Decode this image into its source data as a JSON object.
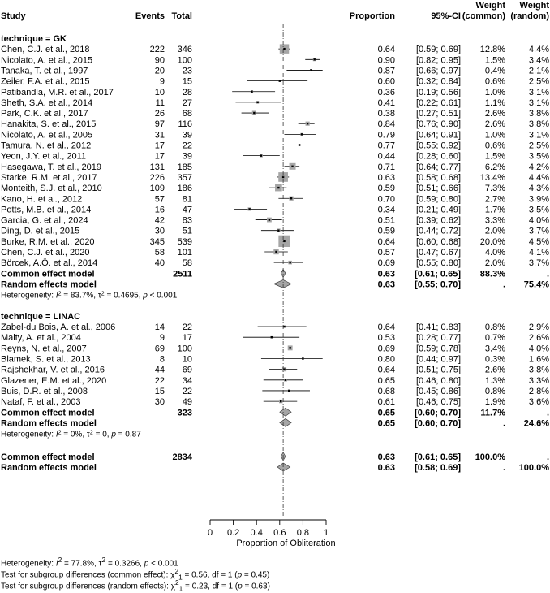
{
  "chart_data": {
    "type": "forest",
    "headers": {
      "study": "Study",
      "events": "Events",
      "total": "Total",
      "proportion": "Proportion",
      "ci": "95%-CI",
      "weight_common": [
        "Weight",
        "(common)"
      ],
      "weight_random": [
        "Weight",
        "(random)"
      ]
    },
    "xaxis": {
      "label": "Proportion of Obliteration",
      "ticks": [
        "0",
        "0.2",
        "0.4",
        "0.6",
        "0.8",
        "1"
      ],
      "range": [
        0,
        1
      ],
      "reference_line": 0.63
    },
    "groups": [
      {
        "title": "technique = GK",
        "studies": [
          {
            "study": "Chen, C.J. et al., 2018",
            "events": "222",
            "total": "346",
            "prop": 0.64,
            "lo": 0.59,
            "hi": 0.69,
            "ci": "[0.59; 0.69]",
            "wc": "12.8%",
            "wr": "4.4%",
            "wcn": 12.8
          },
          {
            "study": "Nicolato, A. et al., 2015",
            "events": "90",
            "total": "100",
            "prop": 0.9,
            "lo": 0.82,
            "hi": 0.95,
            "ci": "[0.82; 0.95]",
            "wc": "1.5%",
            "wr": "3.4%",
            "wcn": 1.5
          },
          {
            "study": "Tanaka, T. et al., 1997",
            "events": "20",
            "total": "23",
            "prop": 0.87,
            "lo": 0.66,
            "hi": 0.97,
            "ci": "[0.66; 0.97]",
            "wc": "0.4%",
            "wr": "2.1%",
            "wcn": 0.4
          },
          {
            "study": "Zeiler, F.A. et al., 2015",
            "events": "9",
            "total": "15",
            "prop": 0.6,
            "lo": 0.32,
            "hi": 0.84,
            "ci": "[0.32; 0.84]",
            "wc": "0.6%",
            "wr": "2.5%",
            "wcn": 0.6
          },
          {
            "study": "Patibandla, M.R. et al., 2017",
            "events": "10",
            "total": "28",
            "prop": 0.36,
            "lo": 0.19,
            "hi": 0.56,
            "ci": "[0.19; 0.56]",
            "wc": "1.0%",
            "wr": "3.1%",
            "wcn": 1.0
          },
          {
            "study": "Sheth, S.A. et al., 2014",
            "events": "11",
            "total": "27",
            "prop": 0.41,
            "lo": 0.22,
            "hi": 0.61,
            "ci": "[0.22; 0.61]",
            "wc": "1.1%",
            "wr": "3.1%",
            "wcn": 1.1
          },
          {
            "study": "Park, C.K. et al., 2017",
            "events": "26",
            "total": "68",
            "prop": 0.38,
            "lo": 0.27,
            "hi": 0.51,
            "ci": "[0.27; 0.51]",
            "wc": "2.6%",
            "wr": "3.8%",
            "wcn": 2.6
          },
          {
            "study": "Hanakita, S. et al., 2015",
            "events": "97",
            "total": "116",
            "prop": 0.84,
            "lo": 0.76,
            "hi": 0.9,
            "ci": "[0.76; 0.90]",
            "wc": "2.6%",
            "wr": "3.8%",
            "wcn": 2.6
          },
          {
            "study": "Nicolato, A. et al., 2005",
            "events": "31",
            "total": "39",
            "prop": 0.79,
            "lo": 0.64,
            "hi": 0.91,
            "ci": "[0.64; 0.91]",
            "wc": "1.0%",
            "wr": "3.1%",
            "wcn": 1.0
          },
          {
            "study": "Tamura, N. et al., 2012",
            "events": "17",
            "total": "22",
            "prop": 0.77,
            "lo": 0.55,
            "hi": 0.92,
            "ci": "[0.55; 0.92]",
            "wc": "0.6%",
            "wr": "2.5%",
            "wcn": 0.6
          },
          {
            "study": "Yeon, J.Y. et al., 2011",
            "events": "17",
            "total": "39",
            "prop": 0.44,
            "lo": 0.28,
            "hi": 0.6,
            "ci": "[0.28; 0.60]",
            "wc": "1.5%",
            "wr": "3.5%",
            "wcn": 1.5
          },
          {
            "study": "Hasegawa, T. et al., 2019",
            "events": "131",
            "total": "185",
            "prop": 0.71,
            "lo": 0.64,
            "hi": 0.77,
            "ci": "[0.64; 0.77]",
            "wc": "6.2%",
            "wr": "4.2%",
            "wcn": 6.2
          },
          {
            "study": "Starke, R.M. et al., 2017",
            "events": "226",
            "total": "357",
            "prop": 0.63,
            "lo": 0.58,
            "hi": 0.68,
            "ci": "[0.58; 0.68]",
            "wc": "13.4%",
            "wr": "4.4%",
            "wcn": 13.4
          },
          {
            "study": "Monteith, S.J. et al., 2010",
            "events": "109",
            "total": "186",
            "prop": 0.59,
            "lo": 0.51,
            "hi": 0.66,
            "ci": "[0.51; 0.66]",
            "wc": "7.3%",
            "wr": "4.3%",
            "wcn": 7.3
          },
          {
            "study": "Kano, H. et al., 2012",
            "events": "57",
            "total": "81",
            "prop": 0.7,
            "lo": 0.59,
            "hi": 0.8,
            "ci": "[0.59; 0.80]",
            "wc": "2.7%",
            "wr": "3.9%",
            "wcn": 2.7
          },
          {
            "study": "Potts, M.B. et al., 2014",
            "events": "16",
            "total": "47",
            "prop": 0.34,
            "lo": 0.21,
            "hi": 0.49,
            "ci": "[0.21; 0.49]",
            "wc": "1.7%",
            "wr": "3.5%",
            "wcn": 1.7
          },
          {
            "study": "Garcia, G. et al., 2024",
            "events": "42",
            "total": "83",
            "prop": 0.51,
            "lo": 0.39,
            "hi": 0.62,
            "ci": "[0.39; 0.62]",
            "wc": "3.3%",
            "wr": "4.0%",
            "wcn": 3.3
          },
          {
            "study": "Ding, D. et al., 2015",
            "events": "30",
            "total": "51",
            "prop": 0.59,
            "lo": 0.44,
            "hi": 0.72,
            "ci": "[0.44; 0.72]",
            "wc": "2.0%",
            "wr": "3.7%",
            "wcn": 2.0
          },
          {
            "study": "Burke, R.M. et al., 2020",
            "events": "345",
            "total": "539",
            "prop": 0.64,
            "lo": 0.6,
            "hi": 0.68,
            "ci": "[0.60; 0.68]",
            "wc": "20.0%",
            "wr": "4.5%",
            "wcn": 20.0
          },
          {
            "study": "Chen, C.J. et al., 2020",
            "events": "58",
            "total": "101",
            "prop": 0.57,
            "lo": 0.47,
            "hi": 0.67,
            "ci": "[0.47; 0.67]",
            "wc": "4.0%",
            "wr": "4.1%",
            "wcn": 4.0
          },
          {
            "study": "Börcek, A.Ö. et al., 2014",
            "events": "40",
            "total": "58",
            "prop": 0.69,
            "lo": 0.55,
            "hi": 0.8,
            "ci": "[0.55; 0.80]",
            "wc": "2.0%",
            "wr": "3.7%",
            "wcn": 2.0
          }
        ],
        "common": {
          "label": "Common effect model",
          "total": "2511",
          "prop": 0.63,
          "lo": 0.61,
          "hi": 0.65,
          "est": "0.63",
          "ci": "[0.61; 0.65]",
          "wc": "88.3%",
          "wr": "."
        },
        "random": {
          "label": "Random effects model",
          "prop": 0.63,
          "lo": 0.55,
          "hi": 0.7,
          "est": "0.63",
          "ci": "[0.55; 0.70]",
          "wc": ".",
          "wr": "75.4%"
        },
        "heterogeneity": {
          "prefix": "Heterogeneity: ",
          "i2": "83.7%",
          "tau2": "0.4695",
          "p": "< 0.001"
        }
      },
      {
        "title": "technique = LINAC",
        "studies": [
          {
            "study": "Zabel-du Bois, A. et al., 2006",
            "events": "14",
            "total": "22",
            "prop": 0.64,
            "lo": 0.41,
            "hi": 0.83,
            "ci": "[0.41; 0.83]",
            "wc": "0.8%",
            "wr": "2.9%",
            "wcn": 0.8
          },
          {
            "study": "Maity, A. et al., 2004",
            "events": "9",
            "total": "17",
            "prop": 0.53,
            "lo": 0.28,
            "hi": 0.77,
            "ci": "[0.28; 0.77]",
            "wc": "0.7%",
            "wr": "2.6%",
            "wcn": 0.7
          },
          {
            "study": "Reyns, N. et al., 2007",
            "events": "69",
            "total": "100",
            "prop": 0.69,
            "lo": 0.59,
            "hi": 0.78,
            "ci": "[0.59; 0.78]",
            "wc": "3.4%",
            "wr": "4.0%",
            "wcn": 3.4
          },
          {
            "study": "Blamek, S. et al., 2013",
            "events": "8",
            "total": "10",
            "prop": 0.8,
            "lo": 0.44,
            "hi": 0.97,
            "ci": "[0.44; 0.97]",
            "wc": "0.3%",
            "wr": "1.6%",
            "wcn": 0.3
          },
          {
            "study": "Rajshekhar, V. et al., 2016",
            "events": "44",
            "total": "69",
            "prop": 0.64,
            "lo": 0.51,
            "hi": 0.75,
            "ci": "[0.51; 0.75]",
            "wc": "2.6%",
            "wr": "3.8%",
            "wcn": 2.6
          },
          {
            "study": "Glazener, E.M. et al., 2020",
            "events": "22",
            "total": "34",
            "prop": 0.65,
            "lo": 0.46,
            "hi": 0.8,
            "ci": "[0.46; 0.80]",
            "wc": "1.3%",
            "wr": "3.3%",
            "wcn": 1.3
          },
          {
            "study": "Buis, D.R. et al., 2008",
            "events": "15",
            "total": "22",
            "prop": 0.68,
            "lo": 0.45,
            "hi": 0.86,
            "ci": "[0.45; 0.86]",
            "wc": "0.8%",
            "wr": "2.8%",
            "wcn": 0.8
          },
          {
            "study": "Nataf, F. et al., 2003",
            "events": "30",
            "total": "49",
            "prop": 0.61,
            "lo": 0.46,
            "hi": 0.75,
            "ci": "[0.46; 0.75]",
            "wc": "1.9%",
            "wr": "3.6%",
            "wcn": 1.9
          }
        ],
        "common": {
          "label": "Common effect model",
          "total": "323",
          "prop": 0.65,
          "lo": 0.6,
          "hi": 0.7,
          "est": "0.65",
          "ci": "[0.60; 0.70]",
          "wc": "11.7%",
          "wr": "."
        },
        "random": {
          "label": "Random effects model",
          "prop": 0.65,
          "lo": 0.6,
          "hi": 0.7,
          "est": "0.65",
          "ci": "[0.60; 0.70]",
          "wc": ".",
          "wr": "24.6%"
        },
        "heterogeneity": {
          "prefix": "Heterogeneity: ",
          "i2": "0%",
          "tau2": "0",
          "p": "0.87"
        }
      }
    ],
    "overall": {
      "common": {
        "label": "Common effect model",
        "total": "2834",
        "prop": 0.63,
        "lo": 0.61,
        "hi": 0.65,
        "est": "0.63",
        "ci": "[0.61; 0.65]",
        "wc": "100.0%",
        "wr": "."
      },
      "random": {
        "label": "Random effects model",
        "prop": 0.63,
        "lo": 0.58,
        "hi": 0.69,
        "est": "0.63",
        "ci": "[0.58; 0.69]",
        "wc": ".",
        "wr": "100.0%"
      }
    },
    "footer": {
      "heterogeneity": {
        "prefix": "Heterogeneity: ",
        "i2": "77.8%",
        "tau2": "0.3266",
        "p": "< 0.001"
      },
      "test_common": {
        "prefix": "Test for subgroup differences (common effect): ",
        "chi2": "0.56",
        "df": "1",
        "p": "0.45"
      },
      "test_random": {
        "prefix": "Test for subgroup differences (random effects): ",
        "chi2": "0.23",
        "df": "1",
        "p": "0.63"
      }
    }
  }
}
